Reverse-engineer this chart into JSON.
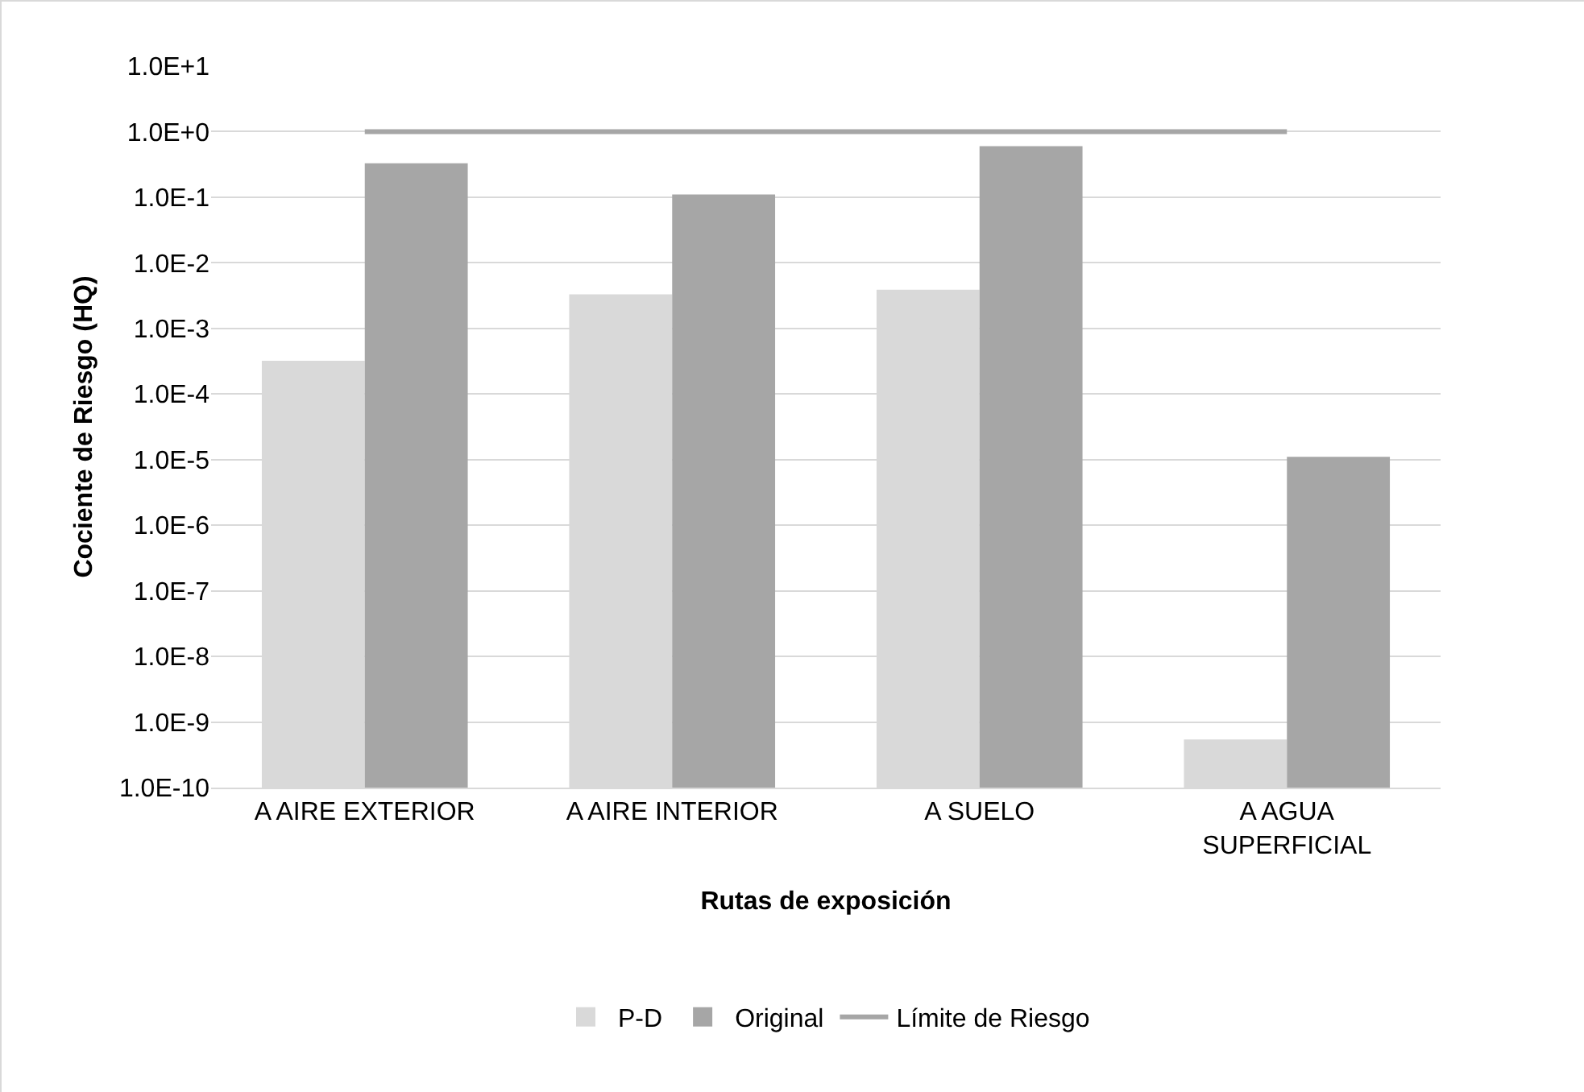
{
  "chart_data": {
    "type": "bar",
    "xlabel": "Rutas de exposición",
    "ylabel": "Cociente de Riesgo (HQ)",
    "categories": [
      "A AIRE EXTERIOR",
      "A AIRE INTERIOR",
      "A SUELO",
      "A AGUA SUPERFICIAL"
    ],
    "series": [
      {
        "name": "P-D",
        "color": "#d9d9d9",
        "values": [
          0.00032,
          0.0033,
          0.0039,
          5.4e-10
        ]
      },
      {
        "name": "Original",
        "color": "#a6a6a6",
        "values": [
          0.33,
          0.11,
          0.6,
          1.1e-05
        ]
      },
      {
        "name": "Límite de Riesgo",
        "type": "line",
        "color": "#a6a6a6",
        "values": [
          1,
          1,
          1,
          1
        ]
      }
    ],
    "log": true,
    "ylim": [
      1e-10,
      10
    ],
    "yticks": [
      {
        "value": 10,
        "label": "1.0E+1"
      },
      {
        "value": 1,
        "label": "1.0E+0"
      },
      {
        "value": 0.1,
        "label": "1.0E-1"
      },
      {
        "value": 0.01,
        "label": "1.0E-2"
      },
      {
        "value": 0.001,
        "label": "1.0E-3"
      },
      {
        "value": 0.0001,
        "label": "1.0E-4"
      },
      {
        "value": 1e-05,
        "label": "1.0E-5"
      },
      {
        "value": 1e-06,
        "label": "1.0E-6"
      },
      {
        "value": 1e-07,
        "label": "1.0E-7"
      },
      {
        "value": 1e-08,
        "label": "1.0E-8"
      },
      {
        "value": 1e-09,
        "label": "1.0E-9"
      },
      {
        "value": 1e-10,
        "label": "1.0E-10"
      }
    ],
    "grid": "y",
    "legend": "bottom"
  }
}
